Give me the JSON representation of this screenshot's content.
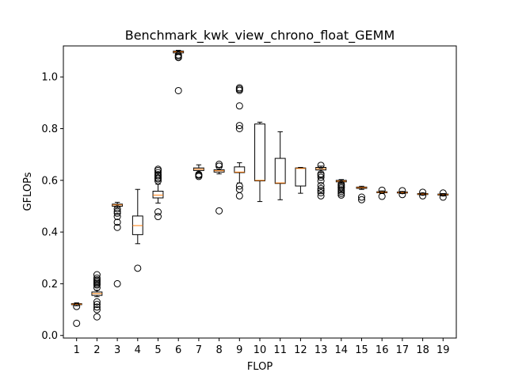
{
  "chart_data": {
    "type": "boxplot",
    "title": "Benchmark_kwk_view_chrono_float_GEMM",
    "xlabel": "FLOP",
    "ylabel": "GFLOPs",
    "ylim": [
      -0.01,
      1.12
    ],
    "yticks": [
      0.0,
      0.2,
      0.4,
      0.6,
      0.8,
      1.0
    ],
    "ytick_labels": [
      "0.0",
      "0.2",
      "0.4",
      "0.6",
      "0.8",
      "1.0"
    ],
    "categories": [
      "1",
      "2",
      "3",
      "4",
      "5",
      "6",
      "7",
      "8",
      "9",
      "10",
      "11",
      "12",
      "13",
      "14",
      "15",
      "16",
      "17",
      "18",
      "19"
    ],
    "median_color": "#ff7f0e",
    "box_color": "#000000",
    "boxes": [
      {
        "label": "1",
        "whislo": 0.115,
        "q1": 0.119,
        "med": 0.121,
        "q3": 0.123,
        "whishi": 0.126,
        "fliers": [
          0.047,
          0.112
        ]
      },
      {
        "label": "2",
        "whislo": 0.15,
        "q1": 0.155,
        "med": 0.162,
        "q3": 0.168,
        "whishi": 0.175,
        "fliers": [
          0.072,
          0.1,
          0.11,
          0.12,
          0.13,
          0.185,
          0.195,
          0.2,
          0.205,
          0.21,
          0.215,
          0.222,
          0.235
        ]
      },
      {
        "label": "3",
        "whislo": 0.495,
        "q1": 0.5,
        "med": 0.505,
        "q3": 0.508,
        "whishi": 0.515,
        "fliers": [
          0.2,
          0.418,
          0.438,
          0.46,
          0.473,
          0.48,
          0.49
        ]
      },
      {
        "label": "4",
        "whislo": 0.355,
        "q1": 0.39,
        "med": 0.425,
        "q3": 0.462,
        "whishi": 0.565,
        "fliers": [
          0.26
        ]
      },
      {
        "label": "5",
        "whislo": 0.512,
        "q1": 0.532,
        "med": 0.543,
        "q3": 0.558,
        "whishi": 0.585,
        "fliers": [
          0.46,
          0.478,
          0.598,
          0.605,
          0.61,
          0.617,
          0.622,
          0.63,
          0.638,
          0.643
        ]
      },
      {
        "label": "6",
        "whislo": 1.088,
        "q1": 1.093,
        "med": 1.097,
        "q3": 1.1,
        "whishi": 1.103,
        "fliers": [
          0.947,
          1.075,
          1.08,
          1.085
        ]
      },
      {
        "label": "7",
        "whislo": 0.628,
        "q1": 0.638,
        "med": 0.643,
        "q3": 0.648,
        "whishi": 0.66,
        "fliers": [
          0.615,
          0.62,
          0.623
        ]
      },
      {
        "label": "8",
        "whislo": 0.625,
        "q1": 0.632,
        "med": 0.637,
        "q3": 0.641,
        "whishi": 0.65,
        "fliers": [
          0.482,
          0.655,
          0.662
        ]
      },
      {
        "label": "9",
        "whislo": 0.59,
        "q1": 0.63,
        "med": 0.632,
        "q3": 0.652,
        "whishi": 0.668,
        "fliers": [
          0.54,
          0.565,
          0.578,
          0.8,
          0.812,
          0.888,
          0.948,
          0.953,
          0.958
        ]
      },
      {
        "label": "10",
        "whislo": 0.518,
        "q1": 0.598,
        "med": 0.6,
        "q3": 0.818,
        "whishi": 0.825,
        "fliers": []
      },
      {
        "label": "11",
        "whislo": 0.525,
        "q1": 0.588,
        "med": 0.59,
        "q3": 0.685,
        "whishi": 0.788,
        "fliers": []
      },
      {
        "label": "12",
        "whislo": 0.55,
        "q1": 0.578,
        "med": 0.646,
        "q3": 0.648,
        "whishi": 0.65,
        "fliers": []
      },
      {
        "label": "13",
        "whislo": 0.63,
        "q1": 0.64,
        "med": 0.645,
        "q3": 0.65,
        "whishi": 0.655,
        "fliers": [
          0.54,
          0.552,
          0.56,
          0.568,
          0.58,
          0.598,
          0.612,
          0.62,
          0.625,
          0.658
        ]
      },
      {
        "label": "14",
        "whislo": 0.59,
        "q1": 0.594,
        "med": 0.597,
        "q3": 0.6,
        "whishi": 0.603,
        "fliers": [
          0.543,
          0.55,
          0.557,
          0.563,
          0.57,
          0.575,
          0.58,
          0.585
        ]
      },
      {
        "label": "15",
        "whislo": 0.565,
        "q1": 0.569,
        "med": 0.572,
        "q3": 0.574,
        "whishi": 0.577,
        "fliers": [
          0.525,
          0.535
        ]
      },
      {
        "label": "16",
        "whislo": 0.549,
        "q1": 0.552,
        "med": 0.554,
        "q3": 0.556,
        "whishi": 0.559,
        "fliers": [
          0.538,
          0.562
        ]
      },
      {
        "label": "17",
        "whislo": 0.549,
        "q1": 0.551,
        "med": 0.553,
        "q3": 0.555,
        "whishi": 0.557,
        "fliers": [
          0.545,
          0.56
        ]
      },
      {
        "label": "18",
        "whislo": 0.543,
        "q1": 0.545,
        "med": 0.547,
        "q3": 0.549,
        "whishi": 0.551,
        "fliers": [
          0.54,
          0.554
        ]
      },
      {
        "label": "19",
        "whislo": 0.54,
        "q1": 0.543,
        "med": 0.545,
        "q3": 0.547,
        "whishi": 0.549,
        "fliers": [
          0.535,
          0.551
        ]
      }
    ]
  }
}
